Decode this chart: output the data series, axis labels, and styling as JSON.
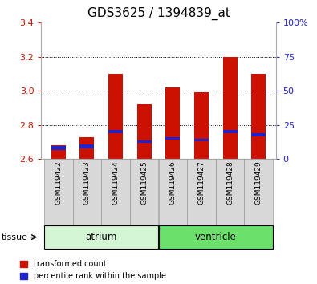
{
  "title": "GDS3625 / 1394839_at",
  "samples": [
    "GSM119422",
    "GSM119423",
    "GSM119424",
    "GSM119425",
    "GSM119426",
    "GSM119427",
    "GSM119428",
    "GSM119429"
  ],
  "transformed_count": [
    2.68,
    2.73,
    3.1,
    2.92,
    3.02,
    2.99,
    3.2,
    3.1
  ],
  "percentile_bottom": [
    2.655,
    2.66,
    2.75,
    2.695,
    2.715,
    2.705,
    2.75,
    2.735
  ],
  "percentile_top": [
    2.675,
    2.685,
    2.77,
    2.71,
    2.73,
    2.72,
    2.77,
    2.75
  ],
  "bar_bottom": 2.6,
  "ylim_left": [
    2.6,
    3.4
  ],
  "ylim_right": [
    0,
    100
  ],
  "yticks_left": [
    2.6,
    2.8,
    3.0,
    3.2,
    3.4
  ],
  "yticks_right": [
    0,
    25,
    50,
    75,
    100
  ],
  "ytick_labels_right": [
    "0",
    "25",
    "50",
    "75",
    "100%"
  ],
  "groups": [
    {
      "label": "atrium",
      "start": 0,
      "end": 4,
      "color": "#d4f5d4"
    },
    {
      "label": "ventricle",
      "start": 4,
      "end": 8,
      "color": "#6be06b"
    }
  ],
  "tissue_label": "tissue",
  "red_color": "#cc1100",
  "blue_color": "#2222cc",
  "bar_width": 0.5,
  "left_tick_color": "#cc1100",
  "right_tick_color": "#2222cc",
  "title_fontsize": 11,
  "tick_fontsize": 8,
  "sample_fontsize": 6.5,
  "label_box_color": "#d8d8d8",
  "grid_yticks": [
    2.8,
    3.0,
    3.2
  ]
}
